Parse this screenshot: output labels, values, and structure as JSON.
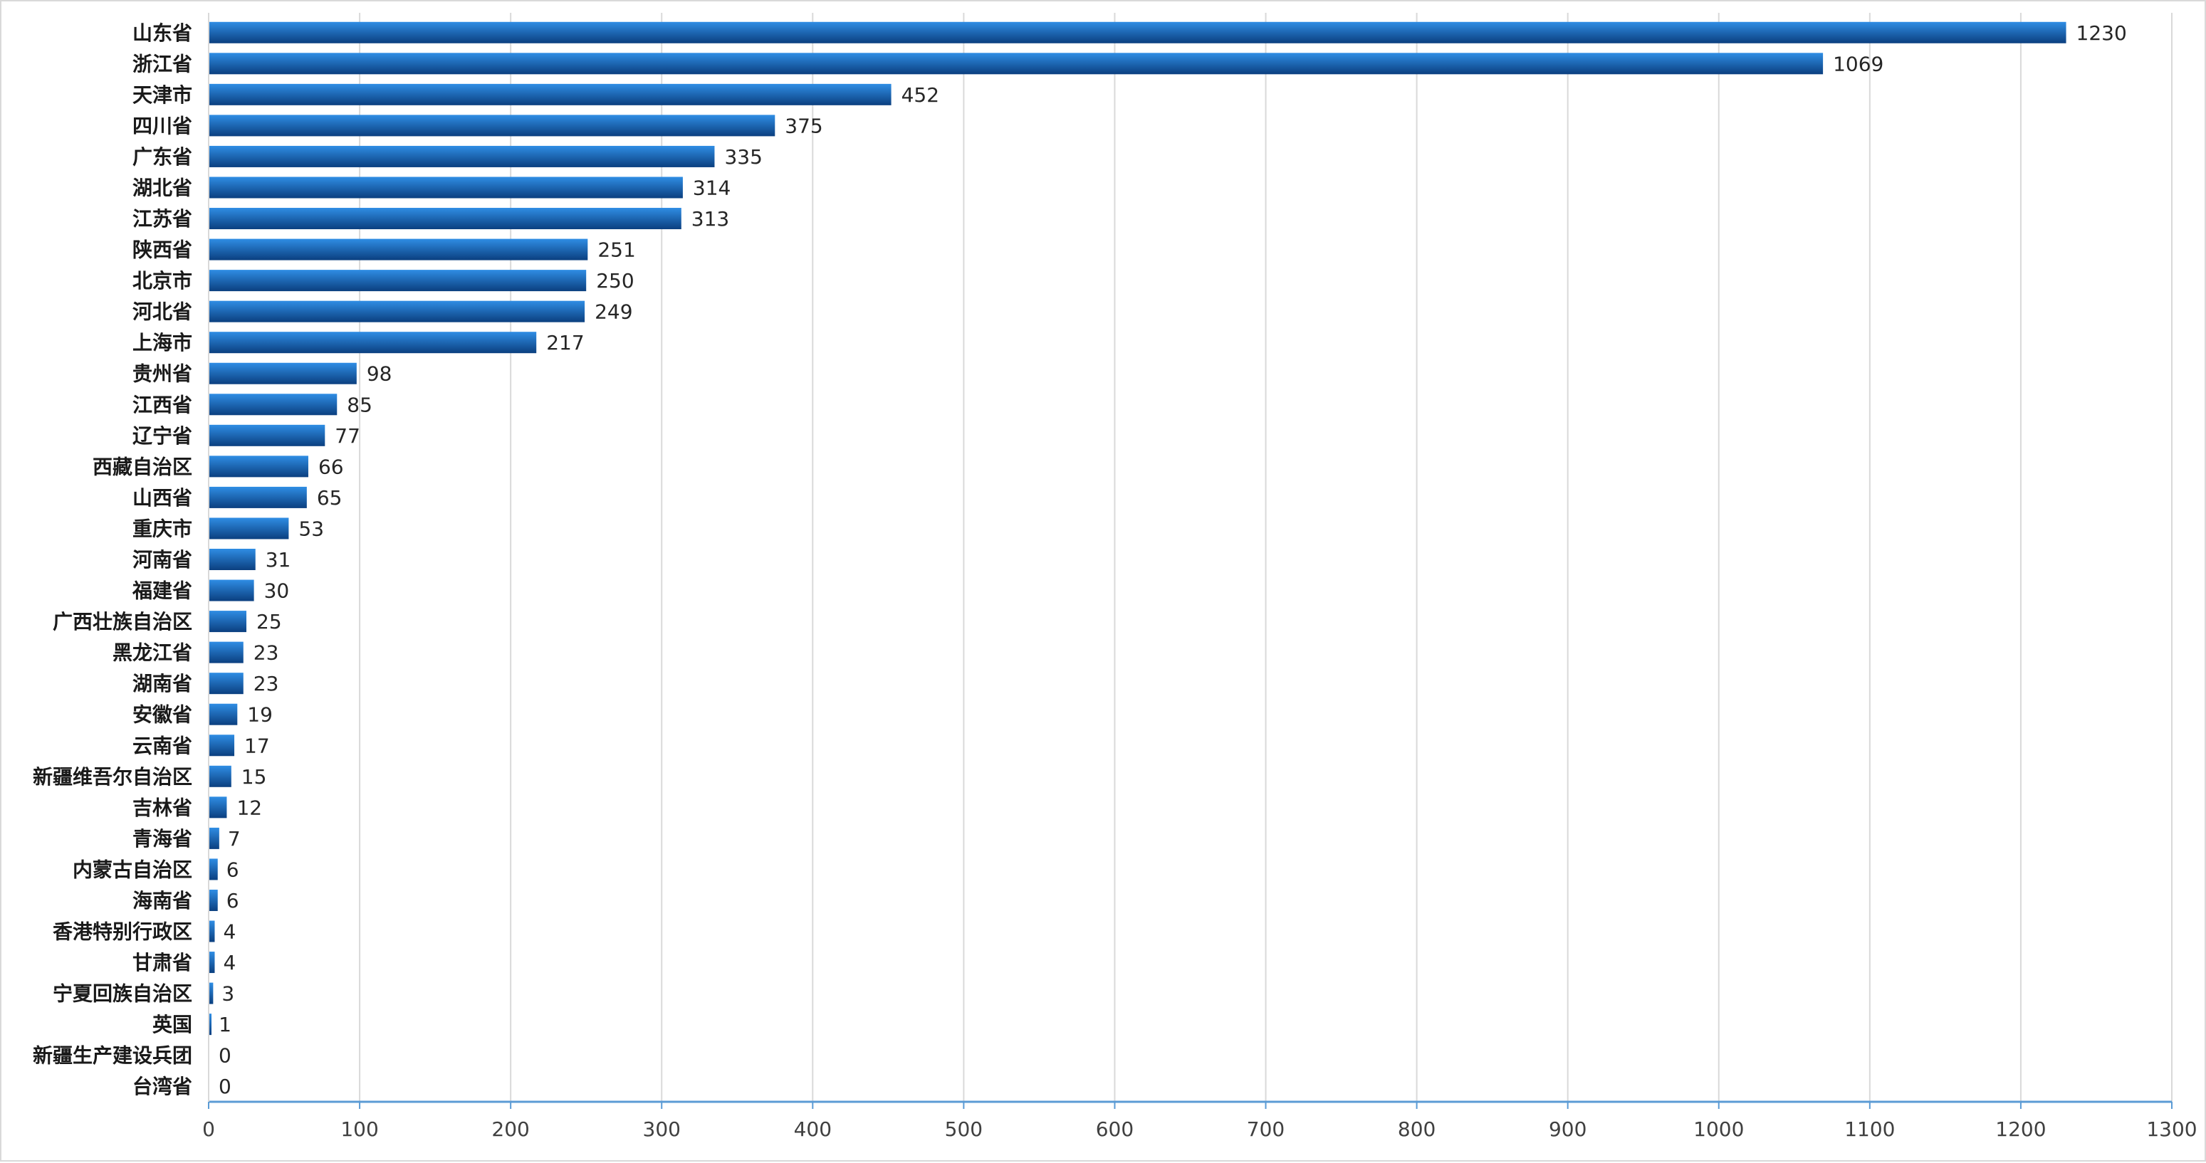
{
  "chart_data": {
    "type": "bar",
    "orientation": "horizontal",
    "title": "",
    "xlabel": "",
    "ylabel": "",
    "xlim": [
      0,
      1300
    ],
    "x_ticks": [
      0,
      100,
      200,
      300,
      400,
      500,
      600,
      700,
      800,
      900,
      1000,
      1100,
      1200,
      1300
    ],
    "grid": "vertical",
    "legend": "none",
    "colors": {
      "bar_light": "#2f8de4",
      "bar_dark": "#0b3f7f",
      "grid": "#d9d9d9",
      "axis": "#5b9bd5"
    },
    "categories": [
      "山东省",
      "浙江省",
      "天津市",
      "四川省",
      "广东省",
      "湖北省",
      "江苏省",
      "陕西省",
      "北京市",
      "河北省",
      "上海市",
      "贵州省",
      "江西省",
      "辽宁省",
      "西藏自治区",
      "山西省",
      "重庆市",
      "河南省",
      "福建省",
      "广西壮族自治区",
      "黑龙江省",
      "湖南省",
      "安徽省",
      "云南省",
      "新疆维吾尔自治区",
      "吉林省",
      "青海省",
      "内蒙古自治区",
      "海南省",
      "香港特别行政区",
      "甘肃省",
      "宁夏回族自治区",
      "英国",
      "新疆生产建设兵团",
      "台湾省"
    ],
    "values": [
      1230,
      1069,
      452,
      375,
      335,
      314,
      313,
      251,
      250,
      249,
      217,
      98,
      85,
      77,
      66,
      65,
      53,
      31,
      30,
      25,
      23,
      23,
      19,
      17,
      15,
      12,
      7,
      6,
      6,
      4,
      4,
      3,
      1,
      0,
      0
    ]
  }
}
